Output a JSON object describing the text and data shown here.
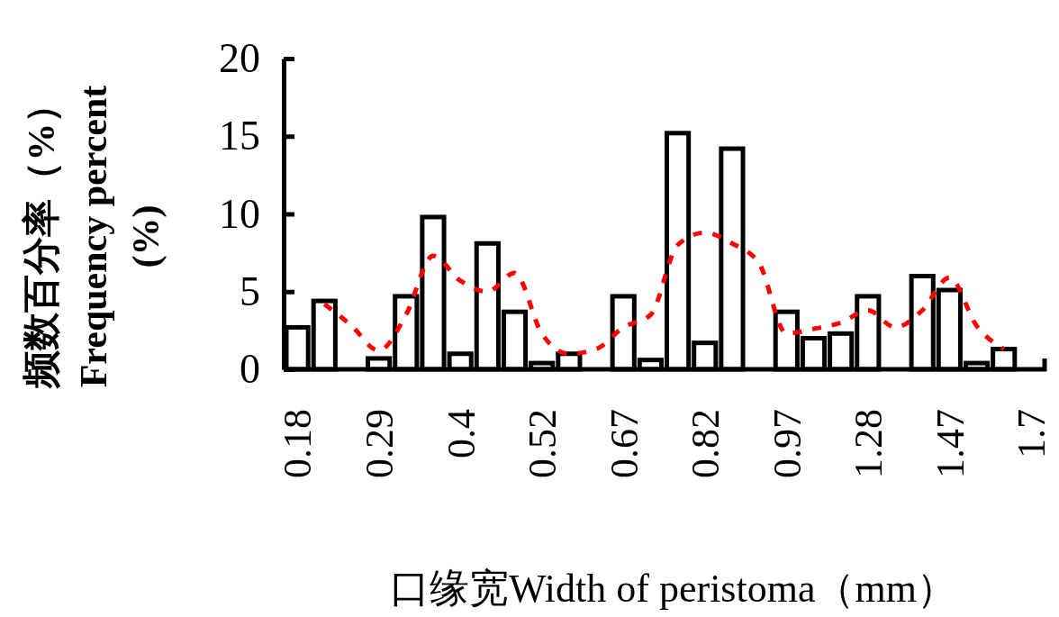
{
  "chart_data": {
    "type": "bar",
    "xlabel": "口缘宽Width of peristoma（mm）",
    "ylabel": "频数百分率（%）\nFrequency percent\n(%)",
    "categories": [
      "0.18",
      null,
      null,
      "0.29",
      null,
      null,
      "0.4",
      null,
      null,
      "0.52",
      null,
      null,
      "0.67",
      null,
      null,
      "0.82",
      null,
      null,
      "0.97",
      null,
      null,
      "1.28",
      null,
      null,
      "1.47",
      null,
      null,
      "1.7"
    ],
    "series": [
      {
        "color": "#000000",
        "values": [
          2.7,
          4.4,
          0,
          0.7,
          4.7,
          9.8,
          1.0,
          8.1,
          3.7,
          0.4,
          1.0,
          0,
          4.7,
          0.6,
          15.2,
          1.7,
          14.2,
          0,
          3.7,
          2.0,
          2.3,
          4.7,
          0,
          6.0,
          5.1,
          0.4,
          1.3,
          0
        ]
      },
      {
        "type": "line",
        "color": "#ff0000",
        "line_style": "dashed",
        "values": [
          null,
          4.2,
          2.8,
          1.2,
          3.5,
          7.3,
          5.7,
          5.0,
          6.2,
          2.3,
          1.0,
          1.3,
          2.7,
          3.5,
          8.0,
          8.8,
          8.1,
          6.8,
          2.3,
          2.6,
          3.0,
          3.8,
          2.7,
          3.8,
          5.9,
          2.8,
          1.3,
          null
        ]
      }
    ],
    "ylim": [
      0,
      20
    ],
    "yticks": [
      0,
      5,
      10,
      15,
      20
    ],
    "grid": false
  }
}
